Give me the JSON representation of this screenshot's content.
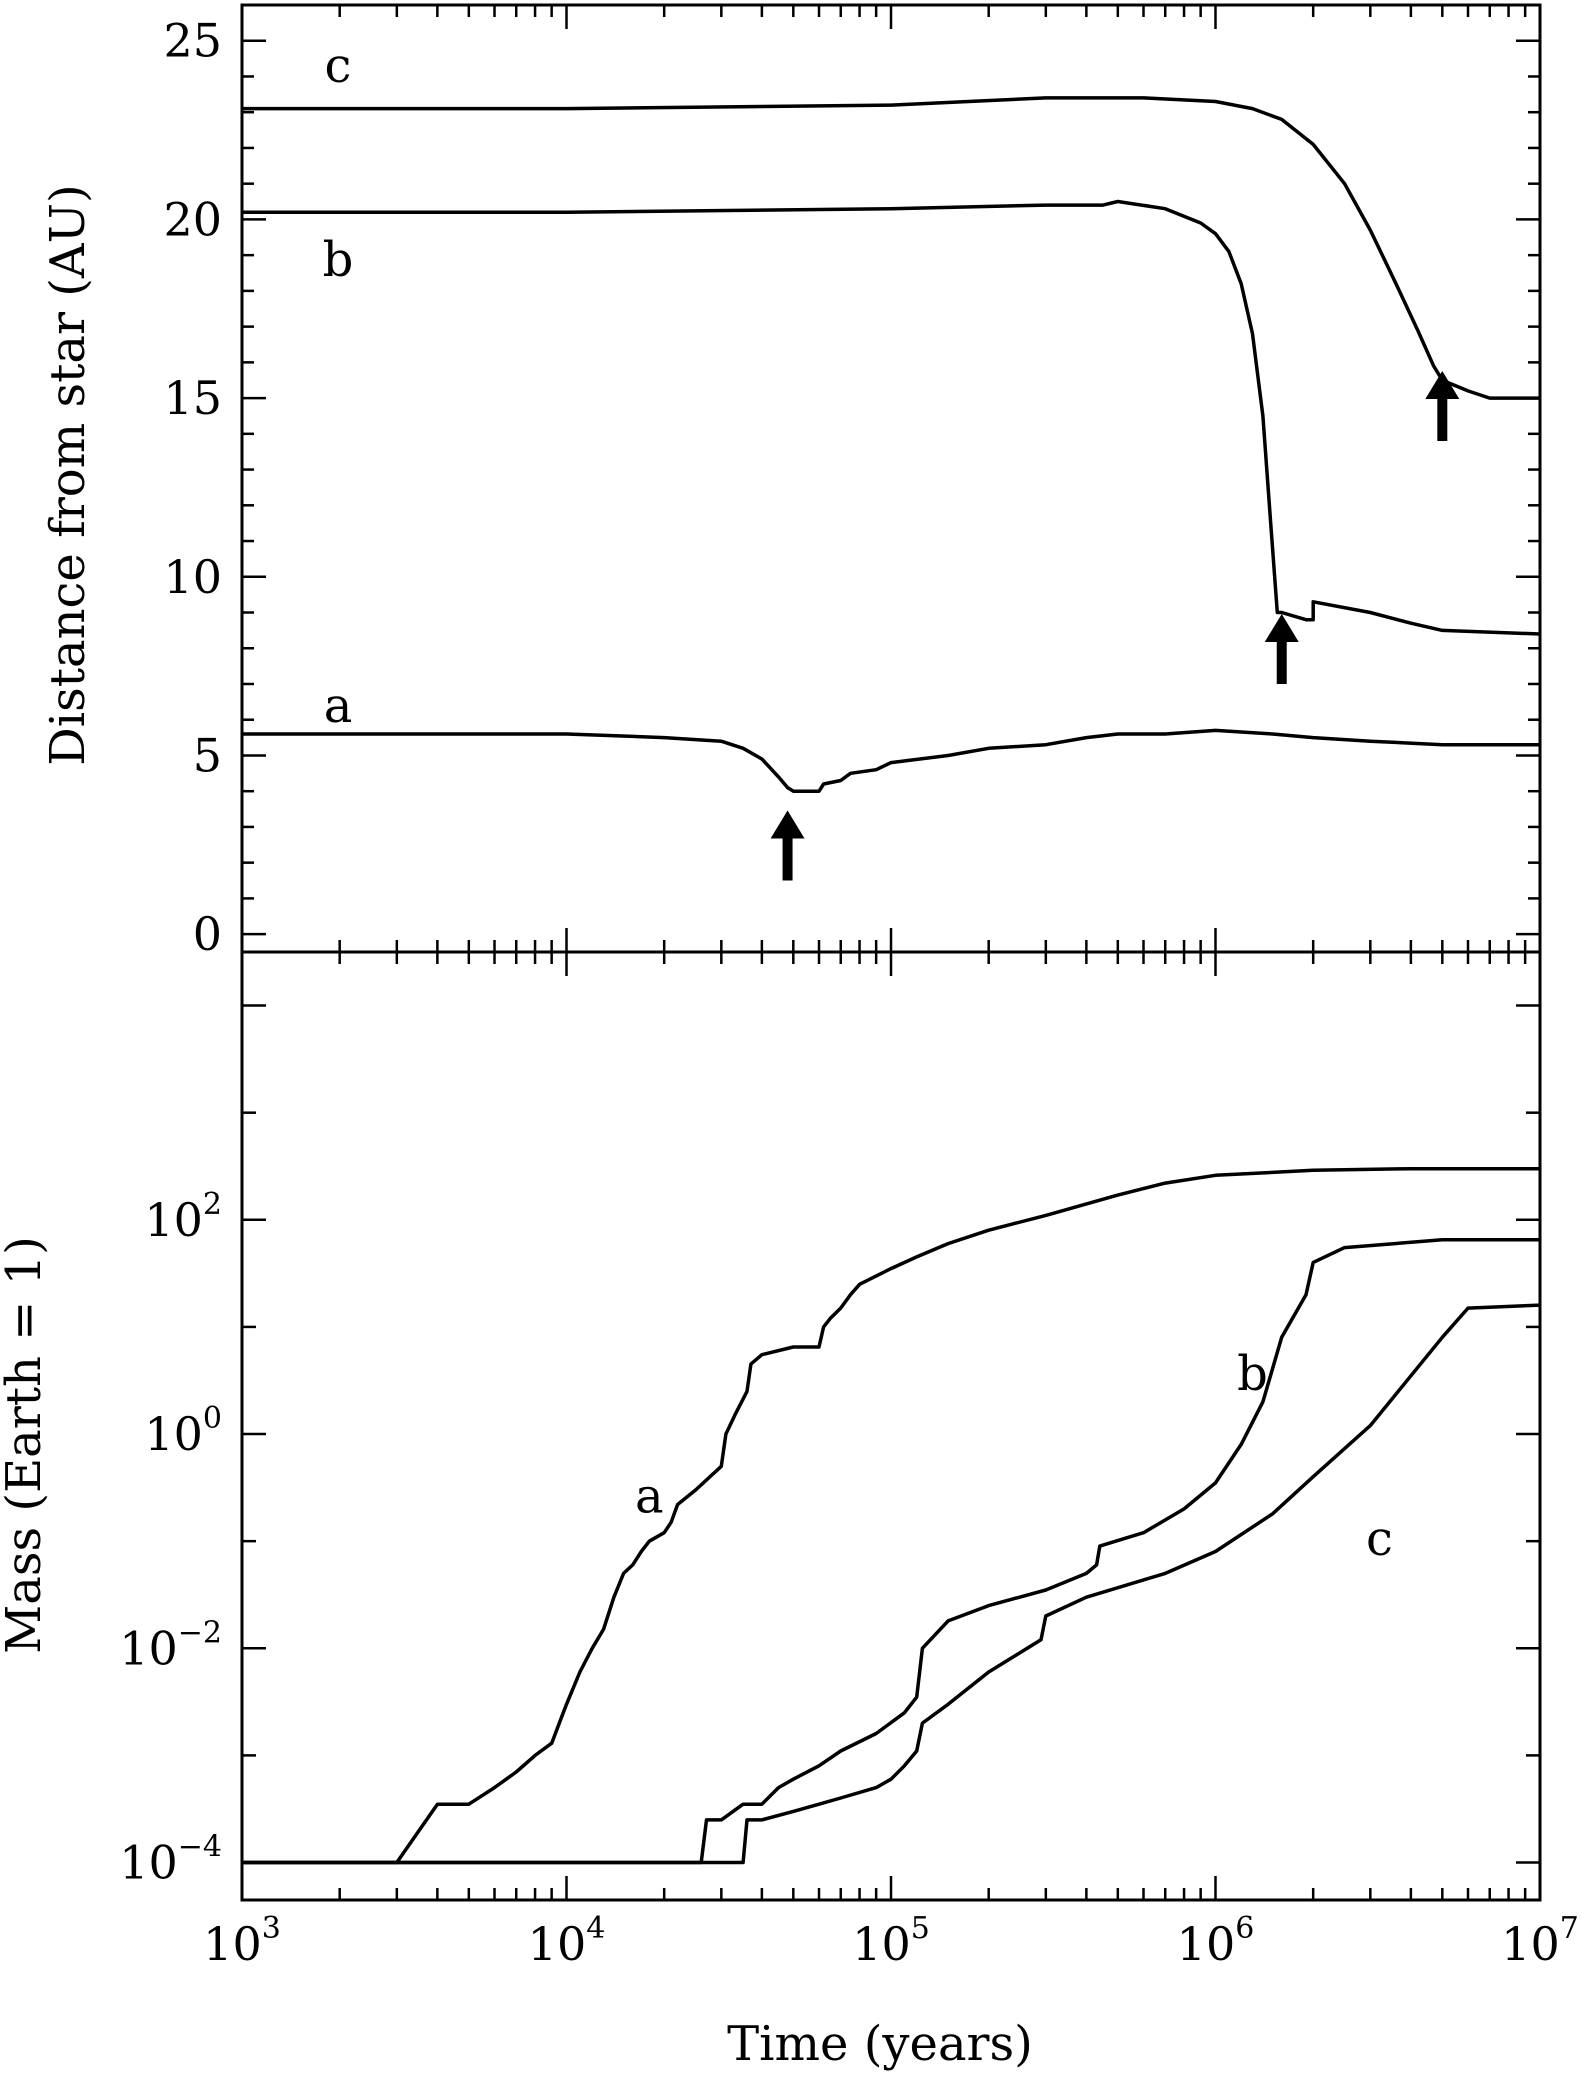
{
  "chart_data": [
    {
      "type": "line",
      "panel": "top",
      "ylabel": "Distance from star (AU)",
      "xscale": "log",
      "xlim": [
        1000,
        10000000
      ],
      "ylim": [
        -0.5,
        26
      ],
      "yticks": [
        0,
        5,
        10,
        15,
        20,
        25
      ],
      "ytick_labels": [
        "0",
        "5",
        "10",
        "15",
        "20",
        "25"
      ],
      "grid": false,
      "series": [
        {
          "name": "a",
          "x": [
            1000,
            10000,
            20000,
            30000,
            35000,
            40000,
            45000,
            48000,
            50000,
            60000,
            62000,
            70000,
            75000,
            90000,
            100000,
            150000,
            200000,
            300000,
            400000,
            500000,
            700000,
            1000000,
            1500000,
            2000000,
            3000000,
            5000000,
            10000000
          ],
          "y": [
            5.6,
            5.6,
            5.5,
            5.4,
            5.2,
            4.9,
            4.4,
            4.1,
            4.0,
            4.0,
            4.2,
            4.3,
            4.5,
            4.6,
            4.8,
            5.0,
            5.2,
            5.3,
            5.5,
            5.6,
            5.6,
            5.7,
            5.6,
            5.5,
            5.4,
            5.3,
            5.3
          ]
        },
        {
          "name": "b",
          "x": [
            1000,
            10000,
            100000,
            300000,
            450000,
            500000,
            700000,
            900000,
            1000000,
            1100000,
            1200000,
            1300000,
            1400000,
            1480000,
            1550000,
            1600000,
            1900000,
            2000000,
            2000001,
            3000000,
            4000000,
            5000000,
            10000000
          ],
          "y": [
            20.2,
            20.2,
            20.3,
            20.4,
            20.4,
            20.5,
            20.3,
            19.9,
            19.6,
            19.1,
            18.2,
            16.8,
            14.5,
            11.5,
            9.0,
            9.0,
            8.8,
            8.8,
            9.3,
            9.0,
            8.7,
            8.5,
            8.4
          ]
        },
        {
          "name": "c",
          "x": [
            1000,
            10000,
            100000,
            300000,
            600000,
            1000000,
            1300000,
            1600000,
            2000000,
            2500000,
            3000000,
            3600000,
            4200000,
            4700000,
            5000000,
            6000000,
            7000000,
            10000000
          ],
          "y": [
            23.1,
            23.1,
            23.2,
            23.4,
            23.4,
            23.3,
            23.1,
            22.8,
            22.1,
            21.0,
            19.7,
            18.2,
            16.9,
            15.9,
            15.5,
            15.2,
            15.0,
            15.0
          ]
        }
      ],
      "arrows": [
        {
          "x": 48000,
          "y": 1.5
        },
        {
          "x": 1600000,
          "y": 7.0
        },
        {
          "x": 5000000,
          "y": 13.8
        }
      ]
    },
    {
      "type": "line",
      "panel": "bottom",
      "xlabel": "Time (years)",
      "ylabel": "Mass (Earth = 1)",
      "xscale": "log",
      "yscale": "log",
      "xlim": [
        1000,
        10000000
      ],
      "ylim_log10": [
        -4.35,
        4.5
      ],
      "xticks": [
        {
          "value": 1000,
          "base": "10",
          "exp": "3"
        },
        {
          "value": 10000,
          "base": "10",
          "exp": "4"
        },
        {
          "value": 100000,
          "base": "10",
          "exp": "5"
        },
        {
          "value": 1000000,
          "base": "10",
          "exp": "6"
        },
        {
          "value": 10000000,
          "base": "10",
          "exp": "7"
        }
      ],
      "yticks": [
        {
          "value": 0.0001,
          "base": "10",
          "exp": "−4"
        },
        {
          "value": 0.01,
          "base": "10",
          "exp": "−2"
        },
        {
          "value": 1,
          "base": "10",
          "exp": "0"
        },
        {
          "value": 100,
          "base": "10",
          "exp": "2"
        }
      ],
      "grid": false,
      "series": [
        {
          "name": "a",
          "x": [
            1000,
            3000,
            4000,
            5000,
            6000,
            7000,
            8000,
            9000,
            9500,
            10000,
            11000,
            12000,
            13000,
            14000,
            15000,
            16000,
            17000,
            18000,
            20000,
            21000,
            22000,
            25000,
            30000,
            31000,
            33000,
            36000,
            37000,
            40000,
            50000,
            60000,
            62000,
            65000,
            70000,
            75000,
            80000,
            100000,
            120000,
            150000,
            200000,
            300000,
            500000,
            700000,
            1000000,
            2000000,
            4000000,
            10000000
          ],
          "y": [
            0.0001,
            0.0001,
            0.00035,
            0.00035,
            0.0005,
            0.0007,
            0.001,
            0.0013,
            0.002,
            0.003,
            0.006,
            0.01,
            0.015,
            0.03,
            0.05,
            0.06,
            0.08,
            0.1,
            0.12,
            0.15,
            0.22,
            0.3,
            0.5,
            1.0,
            1.5,
            2.5,
            4.5,
            5.5,
            6.5,
            6.5,
            10,
            12,
            15,
            20,
            25,
            35,
            45,
            60,
            80,
            110,
            170,
            220,
            260,
            290,
            300,
            300
          ]
        },
        {
          "name": "b",
          "x": [
            1000,
            26000,
            27000,
            30000,
            35000,
            40000,
            45000,
            50000,
            60000,
            70000,
            90000,
            110000,
            120000,
            125000,
            150000,
            200000,
            300000,
            400000,
            430000,
            440000,
            600000,
            800000,
            1000000,
            1200000,
            1400000,
            1600000,
            1900000,
            2000000,
            2500000,
            5000000,
            10000000
          ],
          "y": [
            0.0001,
            0.0001,
            0.00025,
            0.00025,
            0.00035,
            0.00035,
            0.0005,
            0.0006,
            0.0008,
            0.0011,
            0.0016,
            0.0025,
            0.0035,
            0.01,
            0.018,
            0.025,
            0.035,
            0.05,
            0.06,
            0.09,
            0.12,
            0.2,
            0.35,
            0.8,
            2.0,
            8.0,
            20,
            40,
            55,
            65,
            65
          ]
        },
        {
          "name": "c",
          "x": [
            1000,
            35000,
            36000,
            40000,
            50000,
            60000,
            70000,
            90000,
            100000,
            110000,
            120000,
            125000,
            150000,
            200000,
            290000,
            300000,
            400000,
            700000,
            1000000,
            1500000,
            2000000,
            3000000,
            4000000,
            5000000,
            6000000,
            10000000
          ],
          "y": [
            0.0001,
            0.0001,
            0.00025,
            0.00025,
            0.0003,
            0.00035,
            0.0004,
            0.0005,
            0.0006,
            0.0008,
            0.0011,
            0.002,
            0.003,
            0.006,
            0.012,
            0.02,
            0.03,
            0.05,
            0.08,
            0.18,
            0.4,
            1.2,
            3.5,
            8.0,
            15,
            16
          ]
        }
      ],
      "labels": [
        {
          "text": "a",
          "x": 18000,
          "y": 0.25
        },
        {
          "text": "b",
          "x": 1300000,
          "y": 3.5
        },
        {
          "text": "c",
          "x": 3200000,
          "y": 0.1
        }
      ]
    }
  ]
}
